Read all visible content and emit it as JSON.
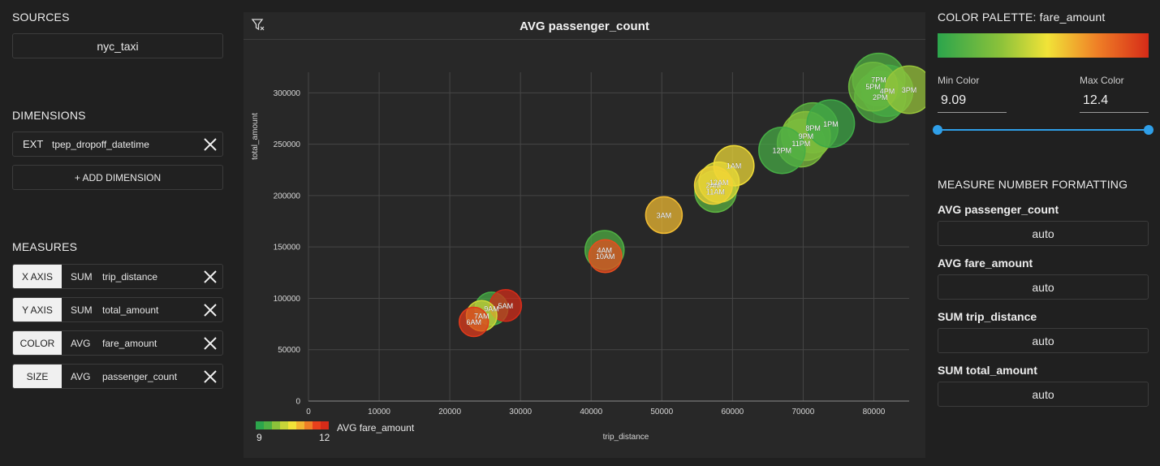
{
  "sources": {
    "heading": "SOURCES",
    "items": [
      "nyc_taxi"
    ]
  },
  "dimensions": {
    "heading": "DIMENSIONS",
    "items": [
      {
        "kind": "EXT",
        "field": "tpep_dropoff_datetime"
      }
    ],
    "add_label": "+ ADD DIMENSION"
  },
  "measures": {
    "heading": "MEASURES",
    "items": [
      {
        "role": "X AXIS",
        "agg": "SUM",
        "field": "trip_distance"
      },
      {
        "role": "Y AXIS",
        "agg": "SUM",
        "field": "total_amount"
      },
      {
        "role": "COLOR",
        "agg": "AVG",
        "field": "fare_amount"
      },
      {
        "role": "SIZE",
        "agg": "AVG",
        "field": "passenger_count"
      }
    ]
  },
  "colors": {
    "app_bg": "#202020",
    "panel_bg": "#282828",
    "accent": "#2f9fe8",
    "palette": [
      "#2ca54c",
      "#4fb043",
      "#8cc23a",
      "#c7d538",
      "#f1e338",
      "#f2b531",
      "#ef7e26",
      "#e8401c",
      "#d62b18"
    ]
  },
  "icons": {
    "filter": "filter-clear-icon",
    "remove": "close-icon"
  },
  "chart_data": {
    "type": "scatter",
    "title": "AVG passenger_count",
    "xlabel": "trip_distance",
    "ylabel": "total_amount",
    "xlim": [
      0,
      85000
    ],
    "ylim": [
      0,
      320000
    ],
    "xticks": [
      0,
      10000,
      20000,
      30000,
      40000,
      50000,
      60000,
      70000,
      80000
    ],
    "yticks": [
      0,
      50000,
      100000,
      150000,
      200000,
      250000,
      300000
    ],
    "grid": true,
    "size_measure": "AVG passenger_count",
    "color_measure": "AVG fare_amount",
    "legend": {
      "title": "AVG fare_amount",
      "min_label": "9",
      "max_label": "12",
      "placement": "bottom-left"
    },
    "color_range": [
      9.09,
      12.4
    ],
    "points": [
      {
        "label": "6AM",
        "x": 23400,
        "y": 77000,
        "size": 1.2,
        "color": 12.1
      },
      {
        "label": "7AM",
        "x": 24500,
        "y": 83000,
        "size": 1.3,
        "color": 10.4
      },
      {
        "label": "5AM",
        "x": 27900,
        "y": 93000,
        "size": 1.4,
        "color": 12.4
      },
      {
        "label": "9AM",
        "x": 25900,
        "y": 90000,
        "size": 1.5,
        "color": 9.4
      },
      {
        "label": "10AM",
        "x": 42000,
        "y": 141000,
        "size": 1.5,
        "color": 11.9
      },
      {
        "label": "4AM",
        "x": 41900,
        "y": 147000,
        "size": 2.0,
        "color": 9.5
      },
      {
        "label": "3AM",
        "x": 50300,
        "y": 181000,
        "size": 1.8,
        "color": 11.1
      },
      {
        "label": "11AM",
        "x": 57600,
        "y": 204000,
        "size": 2.2,
        "color": 9.6
      },
      {
        "label": "2AM",
        "x": 57300,
        "y": 210000,
        "size": 1.9,
        "color": 10.9
      },
      {
        "label": "12AM",
        "x": 58100,
        "y": 213000,
        "size": 2.1,
        "color": 10.5
      },
      {
        "label": "1AM",
        "x": 60200,
        "y": 229000,
        "size": 2.1,
        "color": 10.8
      },
      {
        "label": "12PM",
        "x": 67000,
        "y": 244000,
        "size": 2.6,
        "color": 9.4
      },
      {
        "label": "11PM",
        "x": 69700,
        "y": 251000,
        "size": 2.7,
        "color": 9.8
      },
      {
        "label": "9PM",
        "x": 70400,
        "y": 258000,
        "size": 2.8,
        "color": 9.9
      },
      {
        "label": "8PM",
        "x": 71400,
        "y": 266000,
        "size": 2.9,
        "color": 9.6
      },
      {
        "label": "1PM",
        "x": 73900,
        "y": 270000,
        "size": 2.7,
        "color": 9.3
      },
      {
        "label": "2PM",
        "x": 80900,
        "y": 296000,
        "size": 3.0,
        "color": 9.5
      },
      {
        "label": "5PM",
        "x": 79900,
        "y": 306000,
        "size": 2.8,
        "color": 9.7
      },
      {
        "label": "4PM",
        "x": 81900,
        "y": 302000,
        "size": 3.0,
        "color": 9.4
      },
      {
        "label": "3PM",
        "x": 85000,
        "y": 303000,
        "size": 2.7,
        "color": 10.0
      },
      {
        "label": "7PM",
        "x": 80700,
        "y": 313000,
        "size": 3.1,
        "color": 9.5
      }
    ]
  },
  "palette_panel": {
    "heading": "COLOR PALETTE: fare_amount",
    "min_label": "Min Color",
    "min_value": "9.09",
    "max_label": "Max Color",
    "max_value": "12.4"
  },
  "formatting": {
    "heading": "MEASURE NUMBER FORMATTING",
    "items": [
      {
        "label": "AVG passenger_count",
        "value": "auto"
      },
      {
        "label": "AVG fare_amount",
        "value": "auto"
      },
      {
        "label": "SUM trip_distance",
        "value": "auto"
      },
      {
        "label": "SUM total_amount",
        "value": "auto"
      }
    ]
  }
}
